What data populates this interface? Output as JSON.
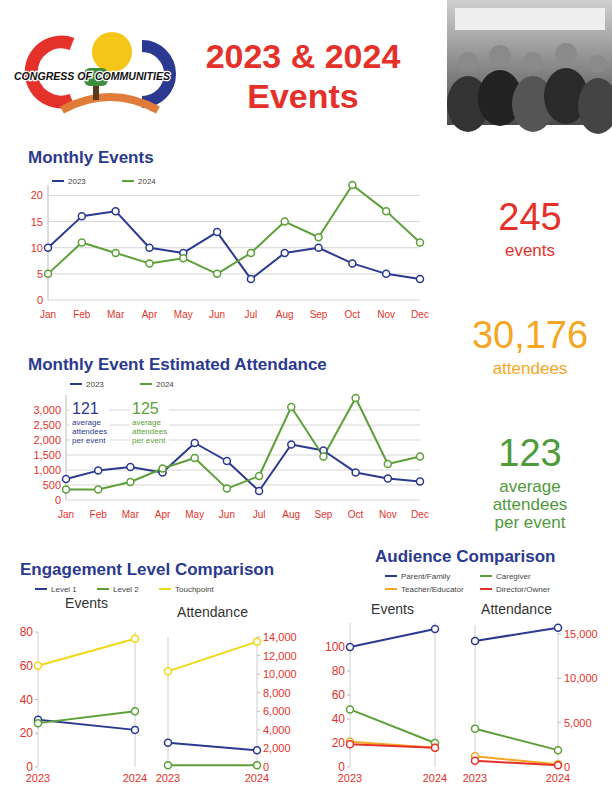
{
  "header": {
    "logo_text": "CONGRESS OF COMMUNITIES",
    "title": [
      "2023 & 2024",
      "Events"
    ]
  },
  "stats": [
    {
      "value": "245",
      "text": "events",
      "color": "#e4322b"
    },
    {
      "value": "30,176",
      "text": "attendees",
      "color": "#f5a623"
    },
    {
      "value": "123",
      "text": "average attendees per event",
      "color": "#4f9a3a"
    }
  ],
  "chart_data": [
    {
      "type": "line",
      "title": "Monthly Events",
      "categories": [
        "Jan",
        "Feb",
        "Mar",
        "Apr",
        "May",
        "Jun",
        "Jul",
        "Aug",
        "Sep",
        "Oct",
        "Nov",
        "Dec"
      ],
      "series": [
        {
          "name": "2023",
          "color": "#2b3990",
          "values": [
            10,
            16,
            17,
            10,
            9,
            13,
            4,
            9,
            10,
            7,
            5,
            4
          ]
        },
        {
          "name": "2024",
          "color": "#5da039",
          "values": [
            5,
            11,
            9,
            7,
            8,
            5,
            9,
            15,
            12,
            22,
            17,
            11
          ]
        }
      ],
      "ylim": [
        0,
        22
      ],
      "yticks": [
        0,
        5,
        10,
        15,
        20
      ],
      "grid": true,
      "legend": "top",
      "marker": "circle"
    },
    {
      "type": "line",
      "title": "Monthly Event Estimated Attendance",
      "categories": [
        "Jan",
        "Feb",
        "Mar",
        "Apr",
        "May",
        "Jun",
        "Jul",
        "Aug",
        "Sep",
        "Oct",
        "Nov",
        "Dec"
      ],
      "series": [
        {
          "name": "2023",
          "color": "#2b3990",
          "values": [
            700,
            980,
            1100,
            920,
            1900,
            1300,
            300,
            1850,
            1650,
            920,
            720,
            620
          ]
        },
        {
          "name": "2024",
          "color": "#5da039",
          "values": [
            350,
            350,
            600,
            1050,
            1400,
            380,
            800,
            3100,
            1450,
            3400,
            1200,
            1450
          ]
        }
      ],
      "ylim": [
        0,
        3500
      ],
      "yticks": [
        0,
        500,
        {
          "value": 1000,
          "label": "1,000"
        },
        {
          "value": 1500,
          "label": "1,500"
        },
        {
          "value": 2000,
          "label": "2,000"
        },
        {
          "value": 2500,
          "label": "2,500"
        },
        {
          "value": 3000,
          "label": "3,000"
        }
      ],
      "grid": true,
      "legend": "top",
      "marker": "circle",
      "annotations": [
        {
          "value": "121",
          "text": "average attendees per event",
          "color": "#2b3990"
        },
        {
          "value": "125",
          "text": "average attendees per event",
          "color": "#5da039"
        }
      ]
    },
    {
      "type": "line",
      "title": "Engagement Level Comparison",
      "categories": [
        "2023",
        "2024"
      ],
      "grid": false,
      "legend": "top",
      "marker": "circle",
      "series": [
        {
          "name": "Level 1",
          "color": "#2b3990"
        },
        {
          "name": "Level 2",
          "color": "#5da039"
        },
        {
          "name": "Touchpoint",
          "color": "#f0d816"
        }
      ],
      "panels": [
        {
          "title": "Events",
          "ylim": [
            0,
            80
          ],
          "yticks": [
            0,
            20,
            40,
            60,
            80
          ],
          "series": [
            {
              "values": [
                28,
                22
              ]
            },
            {
              "values": [
                26,
                33
              ]
            },
            {
              "values": [
                60,
                76
              ]
            }
          ]
        },
        {
          "title": "Attendance",
          "y2lim": [
            0,
            14000
          ],
          "y2ticks": [
            0,
            {
              "value": 2000,
              "label": "2,000"
            },
            {
              "value": 4000,
              "label": "4,000"
            },
            {
              "value": 6000,
              "label": "6,000"
            },
            {
              "value": 8000,
              "label": "8,000"
            },
            {
              "value": 10000,
              "label": "10,000"
            },
            {
              "value": 12000,
              "label": "12,000"
            },
            {
              "value": 14000,
              "label": "14,000"
            }
          ],
          "series": [
            {
              "axis": "y2",
              "values": [
                2600,
                1800
              ]
            },
            {
              "axis": "y2",
              "values": [
                200,
                200
              ]
            },
            {
              "axis": "y2",
              "values": [
                10300,
                13500
              ]
            }
          ]
        }
      ]
    },
    {
      "type": "line",
      "title": "Audience Comparison",
      "categories": [
        "2023",
        "2024"
      ],
      "grid": false,
      "legend": "top",
      "marker": "circle",
      "series": [
        {
          "name": "Parent/Family",
          "color": "#2b3990"
        },
        {
          "name": "Caregiver",
          "color": "#5da039"
        },
        {
          "name": "Teacher/Educator",
          "color": "#f5a623"
        },
        {
          "name": "Director/Owner",
          "color": "#e4322b"
        }
      ],
      "panels": [
        {
          "title": "Events",
          "ylim": [
            0,
            120
          ],
          "yticks": [
            0,
            20,
            40,
            60,
            80,
            100
          ],
          "series": [
            {
              "values": [
                100,
                115
              ]
            },
            {
              "values": [
                48,
                20
              ]
            },
            {
              "values": [
                21,
                16
              ]
            },
            {
              "values": [
                19,
                16
              ]
            }
          ]
        },
        {
          "title": "Attendance",
          "y2lim": [
            0,
            16000
          ],
          "y2ticks": [
            0,
            {
              "value": 5000,
              "label": "5,000"
            },
            {
              "value": 10000,
              "label": "10,000"
            },
            {
              "value": 15000,
              "label": "15,000"
            }
          ],
          "series": [
            {
              "axis": "y2",
              "values": [
                14200,
                15700
              ]
            },
            {
              "axis": "y2",
              "values": [
                4300,
                1900
              ]
            },
            {
              "axis": "y2",
              "values": [
                1200,
                300
              ]
            },
            {
              "axis": "y2",
              "values": [
                700,
                200
              ]
            }
          ]
        }
      ]
    }
  ]
}
